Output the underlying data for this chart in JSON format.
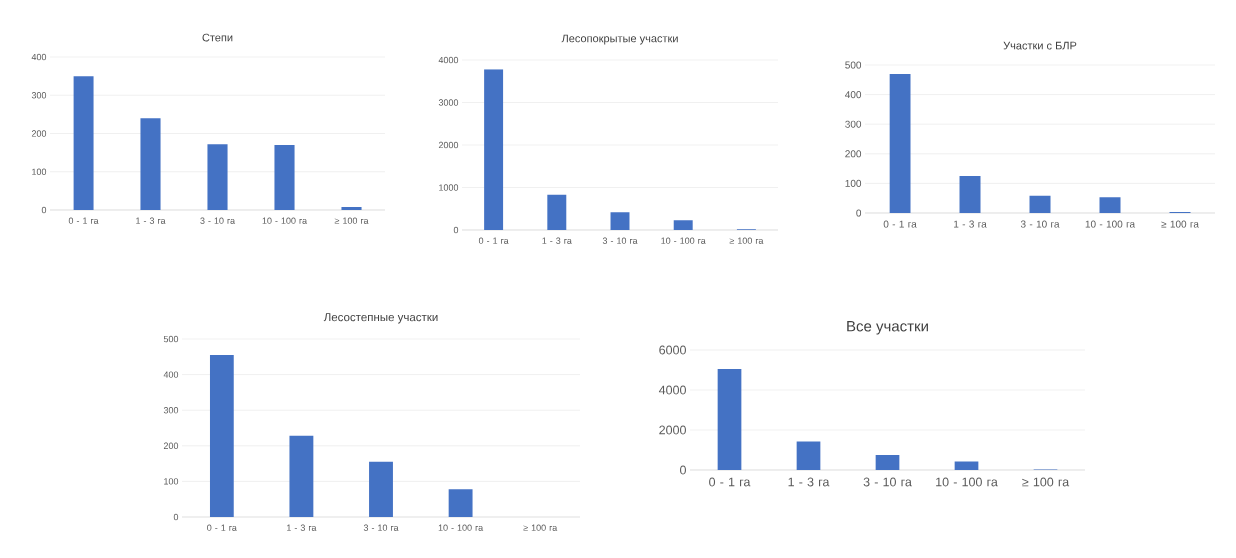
{
  "chart_data": [
    {
      "type": "bar",
      "title": "Степи",
      "categories": [
        "0 - 1 га",
        "1 - 3 га",
        "3 - 10 га",
        "10 - 100 га",
        "≥ 100 га"
      ],
      "values": [
        350,
        240,
        172,
        170,
        8
      ],
      "color": "#4472c4",
      "ylim": [
        0,
        400
      ],
      "yticks": [
        0,
        100,
        200,
        300,
        400
      ],
      "grid": "y"
    },
    {
      "type": "bar",
      "title": "Лесопокрытые участки",
      "categories": [
        "0 - 1 га",
        "1 - 3 га",
        "3 - 10 га",
        "10 - 100 га",
        "≥ 100 га"
      ],
      "values": [
        3780,
        830,
        420,
        230,
        20
      ],
      "color": "#4472c4",
      "ylim": [
        0,
        4000
      ],
      "yticks": [
        0,
        1000,
        2000,
        3000,
        4000
      ],
      "grid": "y"
    },
    {
      "type": "bar",
      "title": "Участки с БЛР",
      "categories": [
        "0 - 1 га",
        "1 - 3 га",
        "3 - 10 га",
        "10 - 100 га",
        "≥ 100 га"
      ],
      "values": [
        470,
        125,
        58,
        53,
        3
      ],
      "color": "#4472c4",
      "ylim": [
        0,
        500
      ],
      "yticks": [
        0,
        100,
        200,
        300,
        400,
        500
      ],
      "grid": "y"
    },
    {
      "type": "bar",
      "title": "Лесостепные участки",
      "categories": [
        "0 - 1 га",
        "1 - 3 га",
        "3 - 10 га",
        "10 - 100 га",
        "≥ 100 га"
      ],
      "values": [
        455,
        228,
        155,
        78,
        0
      ],
      "color": "#4472c4",
      "ylim": [
        0,
        500
      ],
      "yticks": [
        0,
        100,
        200,
        300,
        400,
        500
      ],
      "grid": "y"
    },
    {
      "type": "bar",
      "title": "Все участки",
      "categories": [
        "0 - 1 га",
        "1 - 3 га",
        "3 - 10 га",
        "10 - 100 га",
        "≥ 100 га"
      ],
      "values": [
        5050,
        1420,
        750,
        420,
        30
      ],
      "color": "#4472c4",
      "ylim": [
        0,
        6000
      ],
      "yticks": [
        0,
        2000,
        4000,
        6000
      ],
      "grid": "y"
    }
  ]
}
